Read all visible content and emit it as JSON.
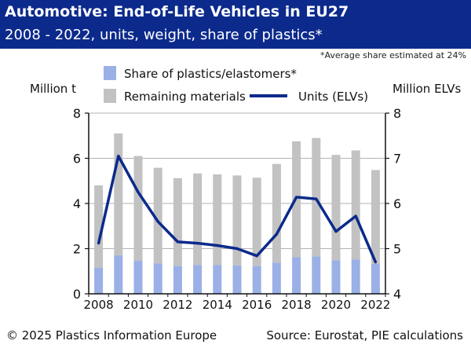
{
  "header": {
    "title": "Automotive: End-of-Life Vehicles in EU27",
    "subtitle": "2008 - 2022, units, weight, share of plastics*"
  },
  "note": "*Average share estimated at 24%",
  "footer": {
    "copyright": "© 2025 Plastics Information Europe",
    "source": "Source: Eurostat, PIE calculations"
  },
  "colors": {
    "header_bg": "#0c2a8c",
    "plastics": "#9ab0e6",
    "remaining": "#c2c2c2",
    "units_line": "#0c2a8c"
  },
  "chart_data": {
    "type": "bar+line",
    "x": [
      2008,
      2009,
      2010,
      2011,
      2012,
      2013,
      2014,
      2015,
      2016,
      2017,
      2018,
      2019,
      2020,
      2021,
      2022
    ],
    "x_tick_labels": [
      "2008",
      "2010",
      "2012",
      "2014",
      "2016",
      "2018",
      "2020",
      "2022"
    ],
    "ylabel_left": "Million t",
    "ylabel_right": "Million ELVs",
    "ylim_left": [
      0,
      8
    ],
    "ylim_right": [
      4,
      8
    ],
    "y_ticks_left": [
      "0",
      "2",
      "4",
      "6",
      "8"
    ],
    "y_ticks_right": [
      "4",
      "5",
      "6",
      "7",
      "8"
    ],
    "grid": "horizontal",
    "stacked": true,
    "series": [
      {
        "name": "Share of plastics/elastomers*",
        "type": "bar",
        "axis": "left",
        "values": [
          1.15,
          1.7,
          1.46,
          1.34,
          1.23,
          1.28,
          1.27,
          1.26,
          1.23,
          1.38,
          1.62,
          1.65,
          1.48,
          1.52,
          1.32
        ]
      },
      {
        "name": "Remaining materials",
        "type": "bar",
        "axis": "left",
        "values": [
          3.65,
          5.4,
          4.64,
          4.24,
          3.89,
          4.05,
          4.02,
          3.98,
          3.91,
          4.37,
          5.13,
          5.25,
          4.67,
          4.83,
          4.16
        ]
      },
      {
        "name": "Units (ELVs)",
        "type": "line",
        "axis": "right",
        "values": [
          5.12,
          7.05,
          6.25,
          5.6,
          5.15,
          5.12,
          5.07,
          5.0,
          4.84,
          5.32,
          6.14,
          6.1,
          5.38,
          5.72,
          4.7
        ]
      }
    ]
  }
}
